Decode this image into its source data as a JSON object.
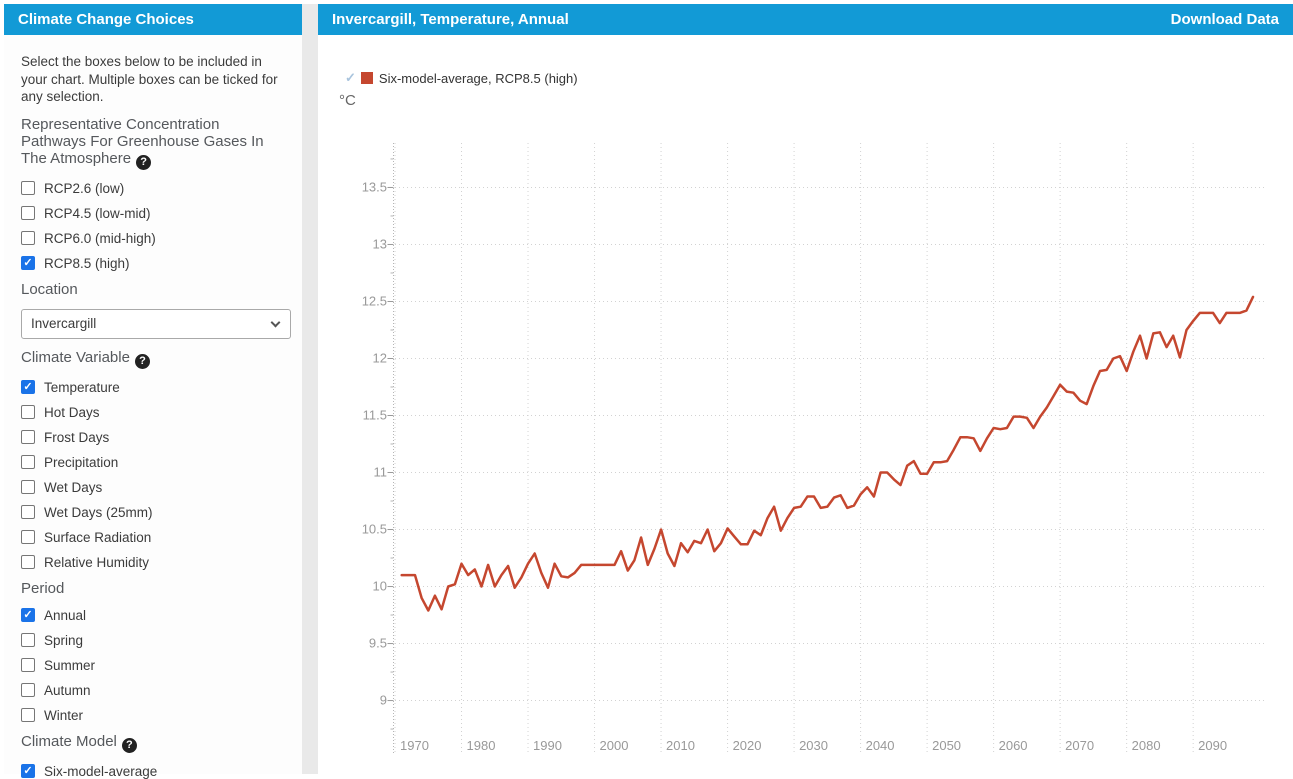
{
  "icons": {
    "check": "✓",
    "help": "?"
  },
  "colors": {
    "accent_blue": "#129ad6",
    "series_red": "#c5472f",
    "checkbox_blue": "#1a73e8",
    "legend_check": "#a9c4dd",
    "grid": "#d2d2d2",
    "axis": "#b5b5b5",
    "tick": "#999999",
    "tick_label": "#999999"
  },
  "sidebar": {
    "title": "Climate Change Choices",
    "intro": "Select the boxes below to be included in your chart. Multiple boxes can be ticked for any selection.",
    "rcp_heading": "Representative Concentration Pathways For Greenhouse Gases In The Atmosphere",
    "rcp_options": [
      {
        "label": "RCP2.6 (low)",
        "checked": false
      },
      {
        "label": "RCP4.5 (low-mid)",
        "checked": false
      },
      {
        "label": "RCP6.0 (mid-high)",
        "checked": false
      },
      {
        "label": "RCP8.5 (high)",
        "checked": true
      }
    ],
    "location_heading": "Location",
    "location_value": "Invercargill",
    "variable_heading": "Climate Variable",
    "variable_options": [
      {
        "label": "Temperature",
        "checked": true
      },
      {
        "label": "Hot Days",
        "checked": false
      },
      {
        "label": "Frost Days",
        "checked": false
      },
      {
        "label": "Precipitation",
        "checked": false
      },
      {
        "label": "Wet Days",
        "checked": false
      },
      {
        "label": "Wet Days (25mm)",
        "checked": false
      },
      {
        "label": "Surface Radiation",
        "checked": false
      },
      {
        "label": "Relative Humidity",
        "checked": false
      }
    ],
    "period_heading": "Period",
    "period_options": [
      {
        "label": "Annual",
        "checked": true
      },
      {
        "label": "Spring",
        "checked": false
      },
      {
        "label": "Summer",
        "checked": false
      },
      {
        "label": "Autumn",
        "checked": false
      },
      {
        "label": "Winter",
        "checked": false
      }
    ],
    "model_heading": "Climate Model",
    "model_options": [
      {
        "label": "Six-model-average",
        "checked": true
      }
    ]
  },
  "chart_panel": {
    "title": "Invercargill, Temperature, Annual",
    "download_label": "Download Data",
    "legend_label": "Six-model-average, RCP8.5 (high)",
    "unit_label": "°C"
  },
  "chart_data": {
    "type": "line",
    "title": "",
    "xlabel": "",
    "ylabel": "°C",
    "legend_position": "top-left",
    "grid": "dotted",
    "xlim": [
      1970,
      2100.8
    ],
    "ylim": [
      8.54,
      13.89
    ],
    "xticks": [
      1970,
      1980,
      1990,
      2000,
      2010,
      2020,
      2030,
      2040,
      2050,
      2060,
      2070,
      2080,
      2090
    ],
    "yticks": [
      9,
      9.5,
      10,
      10.5,
      11,
      11.5,
      12,
      12.5,
      13,
      13.5
    ],
    "minor_ytick_step": 0.25,
    "x_start_year": 1971,
    "x_step_years": 1,
    "series": [
      {
        "name": "Six-model-average, RCP8.5 (high)",
        "color": "#c5472f",
        "values": [
          10.1,
          10.1,
          10.1,
          9.9,
          9.79,
          9.92,
          9.8,
          10.0,
          10.02,
          10.2,
          10.1,
          10.15,
          10.0,
          10.19,
          10.0,
          10.1,
          10.18,
          9.99,
          10.08,
          10.2,
          10.29,
          10.12,
          9.99,
          10.2,
          10.09,
          10.08,
          10.12,
          10.19,
          10.19,
          10.19,
          10.19,
          10.19,
          10.19,
          10.31,
          10.14,
          10.23,
          10.43,
          10.19,
          10.33,
          10.5,
          10.29,
          10.18,
          10.38,
          10.3,
          10.4,
          10.38,
          10.5,
          10.31,
          10.38,
          10.51,
          10.44,
          10.37,
          10.37,
          10.49,
          10.45,
          10.6,
          10.7,
          10.49,
          10.6,
          10.69,
          10.7,
          10.79,
          10.79,
          10.69,
          10.7,
          10.78,
          10.8,
          10.69,
          10.71,
          10.81,
          10.87,
          10.79,
          11.0,
          11.0,
          10.94,
          10.89,
          11.06,
          11.1,
          10.99,
          10.99,
          11.09,
          11.09,
          11.1,
          11.2,
          11.31,
          11.31,
          11.3,
          11.19,
          11.3,
          11.39,
          11.38,
          11.39,
          11.49,
          11.49,
          11.48,
          11.39,
          11.49,
          11.57,
          11.67,
          11.77,
          11.71,
          11.7,
          11.63,
          11.6,
          11.76,
          11.89,
          11.9,
          12.0,
          12.02,
          11.89,
          12.06,
          12.2,
          12.0,
          12.22,
          12.23,
          12.1,
          12.2,
          12.01,
          12.25,
          12.33,
          12.4,
          12.4,
          12.4,
          12.31,
          12.4,
          12.4,
          12.4,
          12.42,
          12.54
        ]
      }
    ]
  }
}
